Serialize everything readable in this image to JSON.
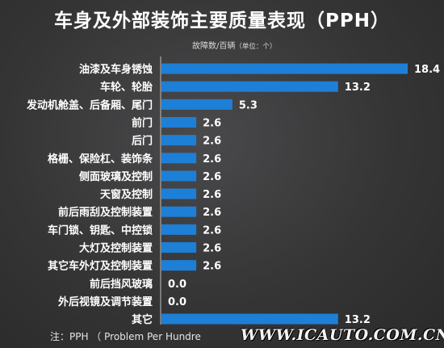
{
  "title": "车身及外部装饰主要质量表现（PPH）",
  "subtitle": {
    "main": "故障数/百辆",
    "unit": "（单位：个）"
  },
  "footnote": "注：PPH （ Problem Per Hundre",
  "watermark": "WWW.ICAUTO.COM.CN",
  "colors": {
    "bar": "#1e7fd6",
    "axis": "#bfbfbf",
    "background": "#3a3a3b"
  },
  "chart_data": {
    "type": "bar",
    "orientation": "horizontal",
    "categories": [
      "油漆及车身锈蚀",
      "车轮、轮胎",
      "发动机舱盖、后备厢、尾门",
      "前门",
      "后门",
      "格栅、保险杠、装饰条",
      "侧面玻璃及控制",
      "天窗及控制",
      "前后雨刮及控制装置",
      "车门锁、钥匙、中控锁",
      "大灯及控制装置",
      "其它车外灯及控制装置",
      "前后挡风玻璃",
      "外后视镜及调节装置",
      "其它"
    ],
    "values": [
      18.4,
      13.2,
      5.3,
      2.6,
      2.6,
      2.6,
      2.6,
      2.6,
      2.6,
      2.6,
      2.6,
      2.6,
      0.0,
      0.0,
      13.2
    ],
    "value_labels": [
      "18.4",
      "13.2",
      "5.3",
      "2.6",
      "2.6",
      "2.6",
      "2.6",
      "2.6",
      "2.6",
      "2.6",
      "2.6",
      "2.6",
      "0.0",
      "0.0",
      "13.2"
    ],
    "xlim": [
      0,
      18.4
    ],
    "data_labels": true,
    "grid": false
  }
}
